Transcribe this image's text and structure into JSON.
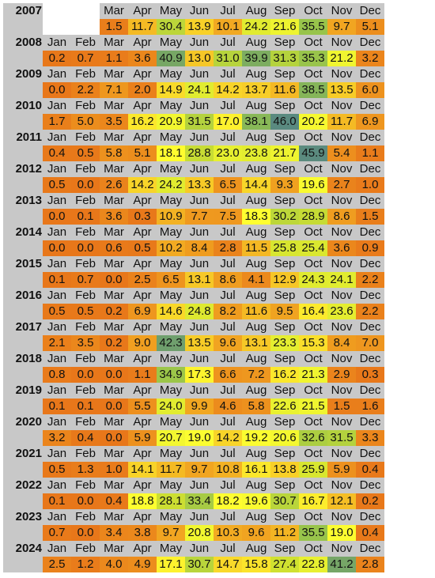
{
  "chart_data": {
    "type": "heatmap",
    "rows": [
      {
        "year": "2007",
        "months": [
          "",
          "",
          "Mar",
          "Apr",
          "May",
          "Jun",
          "Jul",
          "Aug",
          "Sep",
          "Oct",
          "Nov",
          "Dec"
        ],
        "values": [
          null,
          null,
          "1.5",
          "11.7",
          "30.4",
          "13.9",
          "10.1",
          "24.2",
          "21.6",
          "35.5",
          "9.7",
          "5.1"
        ]
      },
      {
        "year": "2008",
        "months": [
          "Jan",
          "Feb",
          "Mar",
          "Apr",
          "May",
          "Jun",
          "Jul",
          "Aug",
          "Sep",
          "Oct",
          "Nov",
          "Dec"
        ],
        "values": [
          "0.2",
          "0.7",
          "1.1",
          "3.6",
          "40.9",
          "13.0",
          "31.0",
          "39.9",
          "31.3",
          "35.3",
          "21.2",
          "3.2"
        ]
      },
      {
        "year": "2009",
        "months": [
          "Jan",
          "Feb",
          "Mar",
          "Apr",
          "May",
          "Jun",
          "Jul",
          "Aug",
          "Sep",
          "Oct",
          "Nov",
          "Dec"
        ],
        "values": [
          "0.0",
          "2.2",
          "7.1",
          "2.0",
          "14.9",
          "24.1",
          "14.2",
          "13.7",
          "11.6",
          "38.5",
          "13.5",
          "6.0"
        ]
      },
      {
        "year": "2010",
        "months": [
          "Jan",
          "Feb",
          "Mar",
          "Apr",
          "May",
          "Jun",
          "Jul",
          "Aug",
          "Sep",
          "Oct",
          "Nov",
          "Dec"
        ],
        "values": [
          "1.7",
          "5.0",
          "3.5",
          "16.2",
          "20.9",
          "31.5",
          "17.0",
          "38.1",
          "46.0",
          "20.2",
          "11.7",
          "6.9"
        ]
      },
      {
        "year": "2011",
        "months": [
          "Jan",
          "Feb",
          "Mar",
          "Apr",
          "May",
          "Jun",
          "Jul",
          "Aug",
          "Sep",
          "Oct",
          "Nov",
          "Dec"
        ],
        "values": [
          "0.4",
          "0.5",
          "5.8",
          "5.1",
          "18.1",
          "28.8",
          "23.0",
          "23.8",
          "21.7",
          "45.9",
          "5.4",
          "1.1"
        ]
      },
      {
        "year": "2012",
        "months": [
          "Jan",
          "Feb",
          "Mar",
          "Apr",
          "May",
          "Jun",
          "Jul",
          "Aug",
          "Sep",
          "Oct",
          "Nov",
          "Dec"
        ],
        "values": [
          "0.5",
          "0.0",
          "2.6",
          "14.2",
          "24.2",
          "13.3",
          "6.5",
          "14.4",
          "9.3",
          "19.6",
          "2.7",
          "1.0"
        ]
      },
      {
        "year": "2013",
        "months": [
          "Jan",
          "Feb",
          "Mar",
          "Apr",
          "May",
          "Jun",
          "Jul",
          "Aug",
          "Sep",
          "Oct",
          "Nov",
          "Dec"
        ],
        "values": [
          "0.0",
          "0.1",
          "3.6",
          "0.3",
          "10.9",
          "7.7",
          "7.5",
          "18.3",
          "30.2",
          "28.9",
          "8.6",
          "1.5"
        ]
      },
      {
        "year": "2014",
        "months": [
          "Jan",
          "Feb",
          "Mar",
          "Apr",
          "May",
          "Jun",
          "Jul",
          "Aug",
          "Sep",
          "Oct",
          "Nov",
          "Dec"
        ],
        "values": [
          "0.0",
          "0.0",
          "0.6",
          "0.5",
          "10.2",
          "8.4",
          "2.8",
          "11.5",
          "25.8",
          "25.4",
          "3.6",
          "0.9"
        ]
      },
      {
        "year": "2015",
        "months": [
          "Jan",
          "Feb",
          "Mar",
          "Apr",
          "May",
          "Jun",
          "Jul",
          "Aug",
          "Sep",
          "Oct",
          "Nov",
          "Dec"
        ],
        "values": [
          "0.1",
          "0.7",
          "0.0",
          "2.5",
          "6.5",
          "13.1",
          "8.6",
          "4.1",
          "12.9",
          "24.3",
          "24.1",
          "2.2"
        ]
      },
      {
        "year": "2016",
        "months": [
          "Jan",
          "Feb",
          "Mar",
          "Apr",
          "May",
          "Jun",
          "Jul",
          "Aug",
          "Sep",
          "Oct",
          "Nov",
          "Dec"
        ],
        "values": [
          "0.5",
          "0.5",
          "0.2",
          "6.9",
          "14.6",
          "24.8",
          "8.2",
          "11.6",
          "9.5",
          "16.4",
          "23.6",
          "2.2"
        ]
      },
      {
        "year": "2017",
        "months": [
          "Jan",
          "Feb",
          "Mar",
          "Apr",
          "May",
          "Jun",
          "Jul",
          "Aug",
          "Sep",
          "Oct",
          "Nov",
          "Dec"
        ],
        "values": [
          "2.1",
          "3.5",
          "0.2",
          "9.0",
          "42.3",
          "13.5",
          "9.6",
          "13.1",
          "23.3",
          "15.3",
          "8.4",
          "7.0"
        ]
      },
      {
        "year": "2018",
        "months": [
          "Jan",
          "Feb",
          "Mar",
          "Apr",
          "May",
          "Jun",
          "Jul",
          "Aug",
          "Sep",
          "Oct",
          "Nov",
          "Dec"
        ],
        "values": [
          "0.8",
          "0.0",
          "0.0",
          "1.1",
          "34.9",
          "17.3",
          "6.6",
          "7.2",
          "16.2",
          "21.3",
          "2.9",
          "0.3"
        ]
      },
      {
        "year": "2019",
        "months": [
          "Jan",
          "Feb",
          "Mar",
          "Apr",
          "May",
          "Jun",
          "Jul",
          "Aug",
          "Sep",
          "Oct",
          "Nov",
          "Dec"
        ],
        "values": [
          "0.1",
          "0.1",
          "0.0",
          "5.5",
          "24.0",
          "9.9",
          "4.6",
          "5.8",
          "22.6",
          "21.5",
          "1.5",
          "1.6"
        ]
      },
      {
        "year": "2020",
        "months": [
          "Jan",
          "Feb",
          "Mar",
          "Apr",
          "May",
          "Jun",
          "Jul",
          "Aug",
          "Sep",
          "Oct",
          "Nov",
          "Dec"
        ],
        "values": [
          "3.2",
          "0.4",
          "0.0",
          "5.9",
          "20.7",
          "19.0",
          "14.2",
          "19.2",
          "20.6",
          "32.6",
          "31.5",
          "3.3"
        ]
      },
      {
        "year": "2021",
        "months": [
          "Jan",
          "Feb",
          "Mar",
          "Apr",
          "May",
          "Jun",
          "Jul",
          "Aug",
          "Sep",
          "Oct",
          "Nov",
          "Dec"
        ],
        "values": [
          "0.5",
          "1.3",
          "1.0",
          "14.1",
          "11.7",
          "9.7",
          "10.8",
          "16.1",
          "13.8",
          "25.9",
          "5.9",
          "0.4"
        ]
      },
      {
        "year": "2022",
        "months": [
          "Jan",
          "Feb",
          "Mar",
          "Apr",
          "May",
          "Jun",
          "Jul",
          "Aug",
          "Sep",
          "Oct",
          "Nov",
          "Dec"
        ],
        "values": [
          "0.1",
          "0.0",
          "0.4",
          "18.8",
          "28.1",
          "33.4",
          "18.2",
          "19.6",
          "30.7",
          "16.7",
          "12.1",
          "0.2"
        ]
      },
      {
        "year": "2023",
        "months": [
          "Jan",
          "Feb",
          "Mar",
          "Apr",
          "May",
          "Jun",
          "Jul",
          "Aug",
          "Sep",
          "Oct",
          "Nov",
          "Dec"
        ],
        "values": [
          "0.7",
          "0.0",
          "3.4",
          "3.8",
          "9.7",
          "20.8",
          "10.3",
          "9.6",
          "11.2",
          "35.5",
          "19.0",
          "0.4"
        ]
      },
      {
        "year": "2024",
        "months": [
          "Jan",
          "Feb",
          "Mar",
          "Apr",
          "May",
          "Jun",
          "Jul",
          "Aug",
          "Sep",
          "Oct",
          "Nov",
          "Dec"
        ],
        "values": [
          "2.5",
          "1.2",
          "4.0",
          "4.9",
          "17.1",
          "30.7",
          "14.7",
          "15.8",
          "27.4",
          "22.8",
          "41.2",
          "2.8"
        ]
      }
    ],
    "color_scale": [
      "#e8771a",
      "#f0a020",
      "#ffff30",
      "#cfe030",
      "#8fbf50",
      "#5a8a80"
    ],
    "color_range": [
      0,
      46
    ]
  }
}
